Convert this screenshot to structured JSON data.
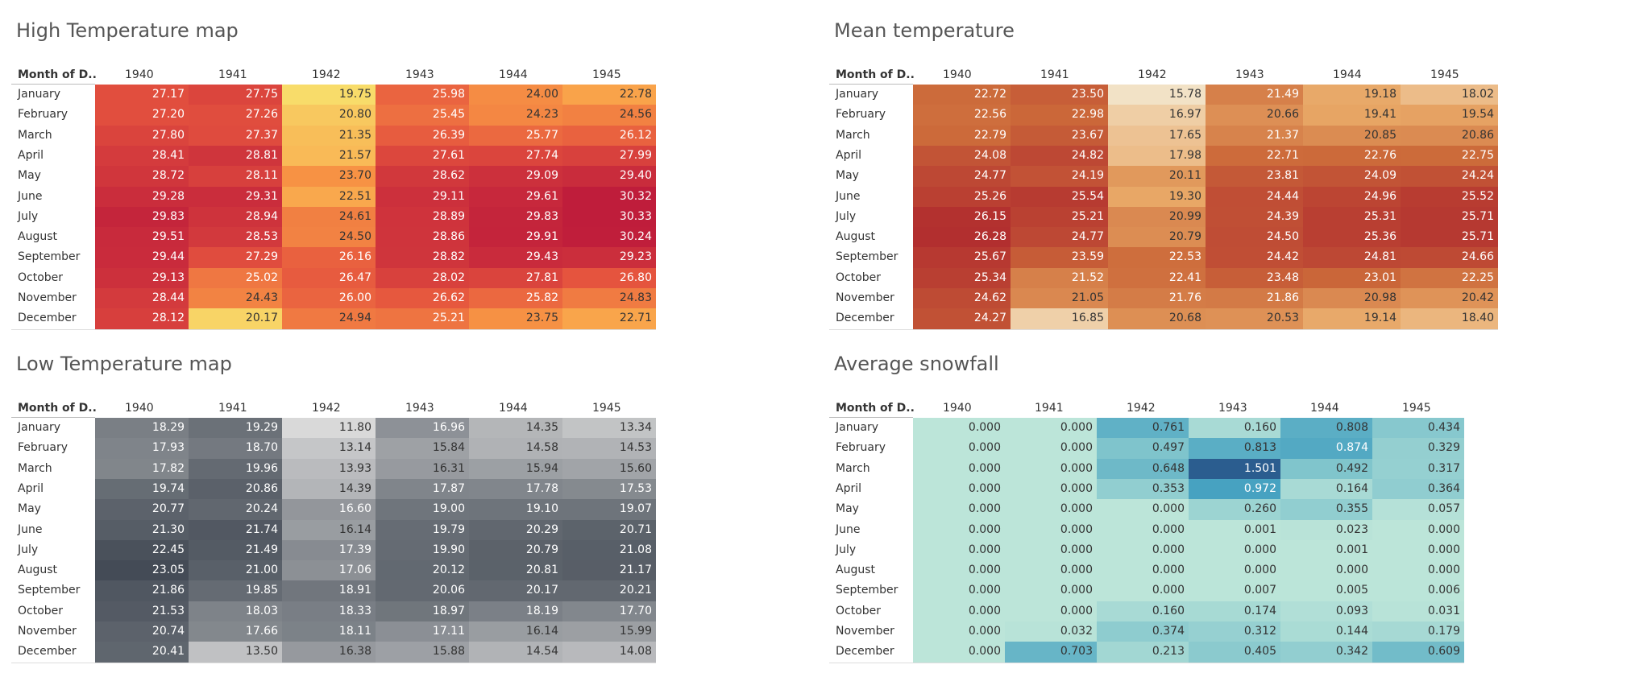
{
  "chart_data": [
    {
      "type": "heatmap",
      "title": "High Temperature map",
      "row_header": "Month of D..",
      "columns": [
        "1940",
        "1941",
        "1942",
        "1943",
        "1944",
        "1945"
      ],
      "rows": [
        "January",
        "February",
        "March",
        "April",
        "May",
        "June",
        "July",
        "August",
        "September",
        "October",
        "November",
        "December"
      ],
      "values": [
        [
          "27.17",
          "27.75",
          "19.75",
          "25.98",
          "24.00",
          "22.78"
        ],
        [
          "27.20",
          "27.26",
          "20.80",
          "25.45",
          "24.23",
          "24.56"
        ],
        [
          "27.80",
          "27.37",
          "21.35",
          "26.39",
          "25.77",
          "26.12"
        ],
        [
          "28.41",
          "28.81",
          "21.57",
          "27.61",
          "27.74",
          "27.99"
        ],
        [
          "28.72",
          "28.11",
          "23.70",
          "28.62",
          "29.09",
          "29.40"
        ],
        [
          "29.28",
          "29.31",
          "22.51",
          "29.11",
          "29.61",
          "30.32"
        ],
        [
          "29.83",
          "28.94",
          "24.61",
          "28.89",
          "29.83",
          "30.33"
        ],
        [
          "29.51",
          "28.53",
          "24.50",
          "28.86",
          "29.91",
          "30.24"
        ],
        [
          "29.44",
          "27.29",
          "26.16",
          "28.82",
          "29.43",
          "29.23"
        ],
        [
          "29.13",
          "25.02",
          "26.47",
          "28.02",
          "27.81",
          "26.80"
        ],
        [
          "28.44",
          "24.43",
          "26.00",
          "26.62",
          "25.82",
          "24.83"
        ],
        [
          "28.12",
          "20.17",
          "24.94",
          "25.21",
          "23.75",
          "22.71"
        ]
      ],
      "palette": [
        "#f8dc6a",
        "#f99a45",
        "#e5543e",
        "#bf1d3b"
      ]
    },
    {
      "type": "heatmap",
      "title": "Mean temperature",
      "row_header": "Month of D..",
      "columns": [
        "1940",
        "1941",
        "1942",
        "1943",
        "1944",
        "1945"
      ],
      "rows": [
        "January",
        "February",
        "March",
        "April",
        "May",
        "June",
        "July",
        "August",
        "September",
        "October",
        "November",
        "December"
      ],
      "values": [
        [
          "22.72",
          "23.50",
          "15.78",
          "21.49",
          "19.18",
          "18.02"
        ],
        [
          "22.56",
          "22.98",
          "16.97",
          "20.66",
          "19.41",
          "19.54"
        ],
        [
          "22.79",
          "23.67",
          "17.65",
          "21.37",
          "20.85",
          "20.86"
        ],
        [
          "24.08",
          "24.82",
          "17.98",
          "22.71",
          "22.76",
          "22.75"
        ],
        [
          "24.77",
          "24.19",
          "20.11",
          "23.81",
          "24.09",
          "24.24"
        ],
        [
          "25.26",
          "25.54",
          "19.30",
          "24.44",
          "24.96",
          "25.52"
        ],
        [
          "26.15",
          "25.21",
          "20.99",
          "24.39",
          "25.31",
          "25.71"
        ],
        [
          "26.28",
          "24.77",
          "20.79",
          "24.50",
          "25.36",
          "25.71"
        ],
        [
          "25.67",
          "23.59",
          "22.53",
          "24.42",
          "24.81",
          "24.66"
        ],
        [
          "25.34",
          "21.52",
          "22.41",
          "23.48",
          "23.01",
          "22.25"
        ],
        [
          "24.62",
          "21.05",
          "21.76",
          "21.86",
          "20.98",
          "20.42"
        ],
        [
          "24.27",
          "16.85",
          "20.68",
          "20.53",
          "19.14",
          "18.40"
        ]
      ],
      "palette": [
        "#f2e2c6",
        "#e8a766",
        "#cc6a3a",
        "#b22f2f"
      ]
    },
    {
      "type": "heatmap",
      "title": "Low Temperature map",
      "row_header": "Month of D..",
      "columns": [
        "1940",
        "1941",
        "1942",
        "1943",
        "1944",
        "1945"
      ],
      "rows": [
        "January",
        "February",
        "March",
        "April",
        "May",
        "June",
        "July",
        "August",
        "September",
        "October",
        "November",
        "December"
      ],
      "values": [
        [
          "18.29",
          "19.29",
          "11.80",
          "16.96",
          "14.35",
          "13.34"
        ],
        [
          "17.93",
          "18.70",
          "13.14",
          "15.84",
          "14.58",
          "14.53"
        ],
        [
          "17.82",
          "19.96",
          "13.93",
          "16.31",
          "15.94",
          "15.60"
        ],
        [
          "19.74",
          "20.86",
          "14.39",
          "17.87",
          "17.78",
          "17.53"
        ],
        [
          "20.77",
          "20.24",
          "16.60",
          "19.00",
          "19.10",
          "19.07"
        ],
        [
          "21.30",
          "21.74",
          "16.14",
          "19.79",
          "20.29",
          "20.71"
        ],
        [
          "22.45",
          "21.49",
          "17.39",
          "19.90",
          "20.79",
          "21.08"
        ],
        [
          "23.05",
          "21.00",
          "17.06",
          "20.12",
          "20.81",
          "21.17"
        ],
        [
          "21.86",
          "19.85",
          "18.91",
          "20.06",
          "20.17",
          "20.21"
        ],
        [
          "21.53",
          "18.03",
          "18.33",
          "18.97",
          "18.19",
          "17.70"
        ],
        [
          "20.74",
          "17.66",
          "18.11",
          "17.11",
          "16.14",
          "15.99"
        ],
        [
          "20.41",
          "13.50",
          "16.38",
          "15.88",
          "14.54",
          "14.08"
        ]
      ],
      "palette": [
        "#d9d9d9",
        "#a2a5a9",
        "#6b7178",
        "#444b56"
      ]
    },
    {
      "type": "heatmap",
      "title": "Average snowfall",
      "row_header": "Month of D..",
      "columns": [
        "1940",
        "1941",
        "1942",
        "1943",
        "1944",
        "1945"
      ],
      "rows": [
        "January",
        "February",
        "March",
        "April",
        "May",
        "June",
        "July",
        "August",
        "September",
        "October",
        "November",
        "December"
      ],
      "values": [
        [
          "0.000",
          "0.000",
          "0.761",
          "0.160",
          "0.808",
          "0.434"
        ],
        [
          "0.000",
          "0.000",
          "0.497",
          "0.813",
          "0.874",
          "0.329"
        ],
        [
          "0.000",
          "0.000",
          "0.648",
          "1.501",
          "0.492",
          "0.317"
        ],
        [
          "0.000",
          "0.000",
          "0.353",
          "0.972",
          "0.164",
          "0.364"
        ],
        [
          "0.000",
          "0.000",
          "0.000",
          "0.260",
          "0.355",
          "0.057"
        ],
        [
          "0.000",
          "0.000",
          "0.000",
          "0.001",
          "0.023",
          "0.000"
        ],
        [
          "0.000",
          "0.000",
          "0.000",
          "0.000",
          "0.001",
          "0.000"
        ],
        [
          "0.000",
          "0.000",
          "0.000",
          "0.000",
          "0.000",
          "0.000"
        ],
        [
          "0.000",
          "0.000",
          "0.000",
          "0.007",
          "0.005",
          "0.006"
        ],
        [
          "0.000",
          "0.000",
          "0.160",
          "0.174",
          "0.093",
          "0.031"
        ],
        [
          "0.000",
          "0.032",
          "0.374",
          "0.312",
          "0.144",
          "0.179"
        ],
        [
          "0.000",
          "0.703",
          "0.213",
          "0.405",
          "0.342",
          "0.609"
        ]
      ],
      "palette": [
        "#bce5d9",
        "#7fc4cc",
        "#44a0c0",
        "#2b5d8f"
      ]
    }
  ]
}
